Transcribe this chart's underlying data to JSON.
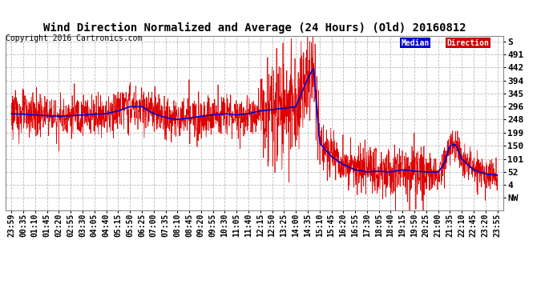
{
  "title": "Wind Direction Normalized and Average (24 Hours) (Old) 20160812",
  "copyright": "Copyright 2016 Cartronics.com",
  "background_color": "#ffffff",
  "plot_bg_color": "#ffffff",
  "ytick_labels": [
    "NW",
    "4",
    "52",
    "101",
    "150",
    "199",
    "248",
    "296",
    "345",
    "394",
    "442",
    "491",
    "S"
  ],
  "ytick_values": [
    -45,
    4,
    52,
    101,
    150,
    199,
    248,
    296,
    345,
    394,
    442,
    491,
    540
  ],
  "xtick_labels": [
    "23:59",
    "00:35",
    "01:10",
    "01:45",
    "02:20",
    "02:55",
    "03:30",
    "04:05",
    "04:40",
    "05:15",
    "05:50",
    "06:25",
    "07:00",
    "07:35",
    "08:10",
    "08:45",
    "09:20",
    "09:55",
    "10:30",
    "11:05",
    "11:40",
    "12:15",
    "12:50",
    "13:25",
    "14:00",
    "14:35",
    "15:10",
    "15:45",
    "16:20",
    "16:55",
    "17:30",
    "18:05",
    "18:40",
    "19:15",
    "19:50",
    "20:25",
    "21:00",
    "21:35",
    "22:10",
    "22:45",
    "23:20",
    "23:55"
  ],
  "legend_median_bg": "#0000cc",
  "legend_median_text": "Median",
  "legend_direction_bg": "#cc0000",
  "legend_direction_text": "Direction",
  "grid_color": "#bbbbbb",
  "red_line_color": "#dd0000",
  "blue_line_color": "#0000cc",
  "title_fontsize": 10,
  "copyright_fontsize": 7,
  "tick_fontsize": 7,
  "ylim_min": -90,
  "ylim_max": 560
}
